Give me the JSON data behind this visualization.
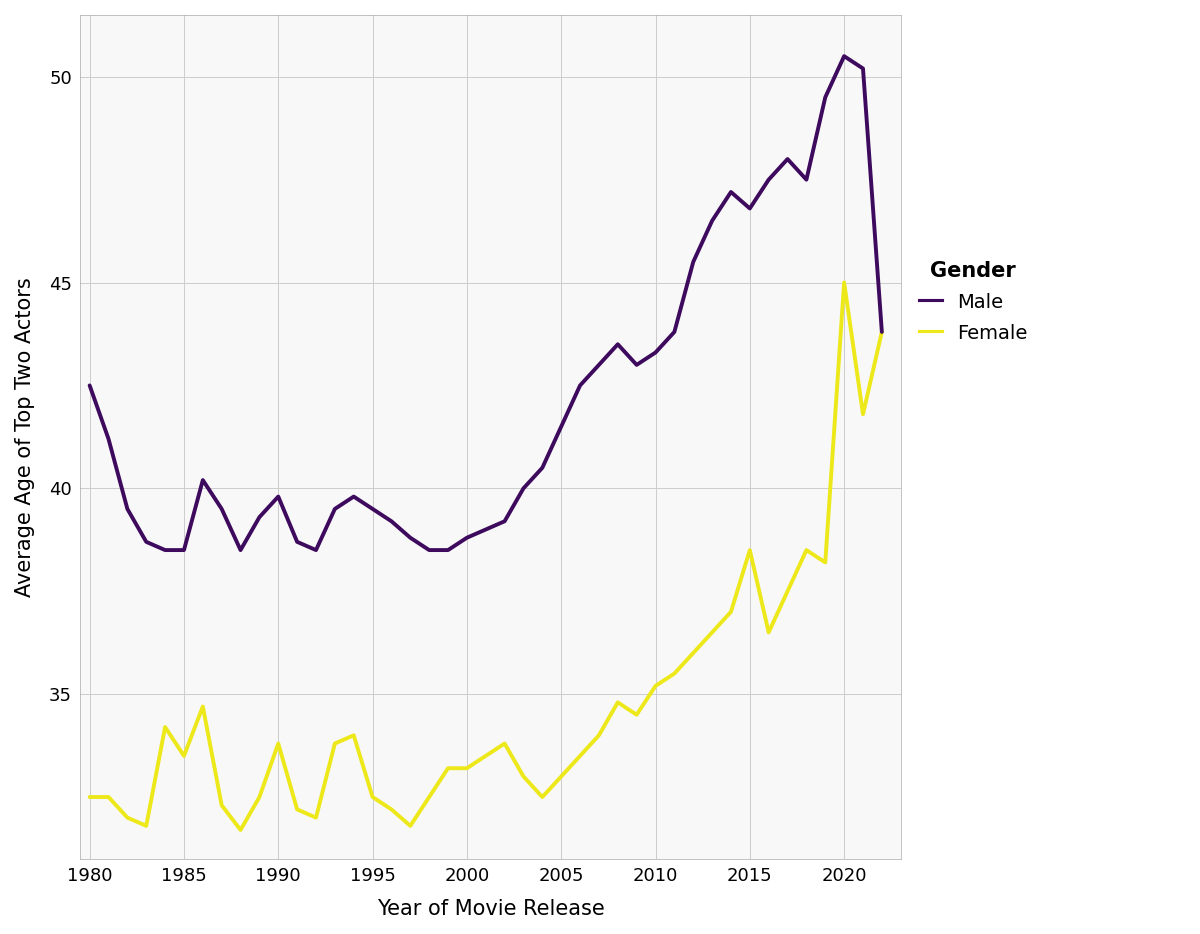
{
  "male_years": [
    1980,
    1981,
    1982,
    1983,
    1984,
    1985,
    1986,
    1987,
    1988,
    1989,
    1990,
    1991,
    1992,
    1993,
    1994,
    1995,
    1996,
    1997,
    1998,
    1999,
    2000,
    2001,
    2002,
    2003,
    2004,
    2005,
    2006,
    2007,
    2008,
    2009,
    2010,
    2011,
    2012,
    2013,
    2014,
    2015,
    2016,
    2017,
    2018,
    2019,
    2020,
    2021,
    2022
  ],
  "male_ages": [
    42.5,
    41.2,
    39.5,
    38.7,
    38.5,
    38.5,
    40.2,
    39.5,
    38.5,
    39.3,
    39.8,
    38.7,
    38.5,
    39.5,
    39.8,
    39.5,
    39.2,
    38.8,
    38.5,
    38.5,
    38.8,
    39.0,
    39.2,
    40.0,
    40.5,
    41.5,
    42.5,
    43.0,
    43.5,
    43.0,
    43.3,
    43.8,
    45.5,
    46.5,
    47.2,
    46.8,
    47.5,
    48.0,
    47.5,
    49.5,
    50.5,
    50.2,
    43.8
  ],
  "female_years": [
    1980,
    1981,
    1982,
    1983,
    1984,
    1985,
    1986,
    1987,
    1988,
    1989,
    1990,
    1991,
    1992,
    1993,
    1994,
    1995,
    1996,
    1997,
    1998,
    1999,
    2000,
    2001,
    2002,
    2003,
    2004,
    2005,
    2006,
    2007,
    2008,
    2009,
    2010,
    2011,
    2012,
    2013,
    2014,
    2015,
    2016,
    2017,
    2018,
    2019,
    2020,
    2021,
    2022
  ],
  "female_ages": [
    32.5,
    32.5,
    32.0,
    31.8,
    34.2,
    33.5,
    34.7,
    32.3,
    31.7,
    32.5,
    33.8,
    32.2,
    32.0,
    33.8,
    34.0,
    32.5,
    32.2,
    31.8,
    32.5,
    33.2,
    33.2,
    33.5,
    33.8,
    33.0,
    32.5,
    33.0,
    33.5,
    34.0,
    34.8,
    34.5,
    35.2,
    35.5,
    36.0,
    36.5,
    37.0,
    38.5,
    36.5,
    37.5,
    38.5,
    38.2,
    45.0,
    41.8,
    43.8
  ],
  "male_color": "#3D0A5E",
  "female_color": "#EDE81A",
  "xlabel": "Year of Movie Release",
  "ylabel": "Average Age of Top Two Actors",
  "legend_title": "Gender",
  "legend_labels": [
    "Male",
    "Female"
  ],
  "xlim": [
    1979.5,
    2023.0
  ],
  "ylim": [
    31.0,
    51.5
  ],
  "xticks": [
    1980,
    1985,
    1990,
    1995,
    2000,
    2005,
    2010,
    2015,
    2020
  ],
  "yticks": [
    35,
    40,
    45,
    50
  ],
  "background_color": "#FFFFFF",
  "plot_bg_color": "#F8F8F8",
  "grid_color": "#CCCCCC",
  "line_width": 2.8,
  "tick_fontsize": 13,
  "label_fontsize": 15,
  "legend_title_fontsize": 15,
  "legend_fontsize": 14
}
